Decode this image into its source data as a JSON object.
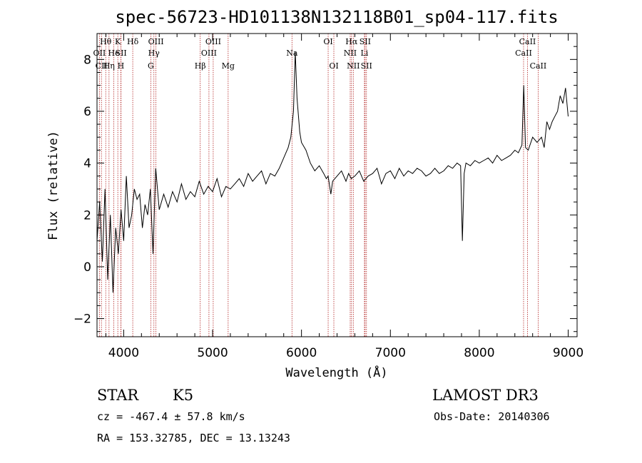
{
  "chart_data": {
    "type": "line",
    "title": "spec-56723-HD101138N132118B01_sp04-117.fits",
    "xlabel": "Wavelength (Å)",
    "ylabel": "Flux (relative)",
    "xlim": [
      3700,
      9100
    ],
    "ylim": [
      -2.7,
      9.0
    ],
    "xticks": [
      4000,
      5000,
      6000,
      7000,
      8000,
      9000
    ],
    "yticks": [
      -2,
      0,
      2,
      4,
      6,
      8
    ],
    "series": [
      {
        "name": "flux",
        "x": [
          3700,
          3730,
          3760,
          3790,
          3820,
          3850,
          3880,
          3910,
          3940,
          3970,
          4000,
          4030,
          4060,
          4090,
          4120,
          4150,
          4180,
          4210,
          4240,
          4270,
          4300,
          4330,
          4360,
          4400,
          4450,
          4500,
          4550,
          4600,
          4650,
          4700,
          4750,
          4800,
          4850,
          4900,
          4950,
          5000,
          5050,
          5100,
          5150,
          5200,
          5250,
          5300,
          5350,
          5400,
          5450,
          5500,
          5550,
          5600,
          5650,
          5700,
          5750,
          5800,
          5850,
          5880,
          5910,
          5930,
          5950,
          5980,
          6000,
          6050,
          6100,
          6150,
          6200,
          6250,
          6280,
          6300,
          6330,
          6350,
          6400,
          6450,
          6500,
          6530,
          6560,
          6600,
          6650,
          6700,
          6750,
          6800,
          6850,
          6900,
          6950,
          7000,
          7050,
          7100,
          7150,
          7200,
          7250,
          7300,
          7350,
          7400,
          7450,
          7500,
          7550,
          7600,
          7650,
          7700,
          7750,
          7790,
          7810,
          7830,
          7850,
          7900,
          7950,
          8000,
          8050,
          8100,
          8150,
          8200,
          8250,
          8300,
          8350,
          8400,
          8440,
          8480,
          8500,
          8520,
          8550,
          8600,
          8650,
          8700,
          8730,
          8760,
          8790,
          8820,
          8850,
          8880,
          8910,
          8940,
          8970,
          9000
        ],
        "values": [
          1.0,
          2.5,
          0.2,
          3.0,
          -0.5,
          2.0,
          -1.0,
          1.5,
          0.5,
          2.2,
          1.0,
          3.5,
          1.5,
          2.0,
          3.0,
          2.6,
          2.8,
          1.5,
          2.4,
          2.0,
          3.0,
          0.5,
          3.8,
          2.2,
          2.8,
          2.3,
          2.9,
          2.5,
          3.2,
          2.6,
          2.9,
          2.7,
          3.3,
          2.8,
          3.1,
          2.9,
          3.4,
          2.7,
          3.1,
          3.0,
          3.2,
          3.4,
          3.1,
          3.6,
          3.3,
          3.5,
          3.7,
          3.2,
          3.6,
          3.5,
          3.8,
          4.2,
          4.6,
          5.0,
          6.0,
          8.3,
          6.5,
          5.2,
          4.8,
          4.5,
          4.0,
          3.7,
          3.9,
          3.6,
          3.4,
          3.5,
          2.8,
          3.3,
          3.5,
          3.7,
          3.3,
          3.6,
          3.4,
          3.5,
          3.7,
          3.3,
          3.5,
          3.6,
          3.8,
          3.2,
          3.6,
          3.7,
          3.4,
          3.8,
          3.5,
          3.7,
          3.6,
          3.8,
          3.7,
          3.5,
          3.6,
          3.8,
          3.6,
          3.7,
          3.9,
          3.8,
          4.0,
          3.9,
          1.0,
          3.6,
          4.0,
          3.9,
          4.1,
          4.0,
          4.1,
          4.2,
          4.0,
          4.3,
          4.1,
          4.2,
          4.3,
          4.5,
          4.4,
          4.7,
          7.0,
          4.6,
          4.5,
          5.0,
          4.8,
          5.0,
          4.6,
          5.6,
          5.3,
          5.6,
          5.8,
          6.0,
          6.6,
          6.3,
          6.9,
          5.8
        ]
      }
    ],
    "line_markers": [
      {
        "label": "Hθ",
        "x": 3798,
        "row": 1
      },
      {
        "label": "Hη",
        "x": 3835,
        "row": 3
      },
      {
        "label": "OII",
        "x": 3727,
        "row": 2
      },
      {
        "label": "CII",
        "x": 3750,
        "row": 3
      },
      {
        "label": "He",
        "x": 3889,
        "row": 2
      },
      {
        "label": "K",
        "x": 3934,
        "row": 1
      },
      {
        "label": "SII",
        "x": 3970,
        "row": 2
      },
      {
        "label": "H",
        "x": 3968,
        "row": 3
      },
      {
        "label": "Hδ",
        "x": 4102,
        "row": 1
      },
      {
        "label": "OIII",
        "x": 4363,
        "row": 1
      },
      {
        "label": "Hγ",
        "x": 4340,
        "row": 2
      },
      {
        "label": "G",
        "x": 4305,
        "row": 3
      },
      {
        "label": "Hβ",
        "x": 4861,
        "row": 3
      },
      {
        "label": "OIII",
        "x": 5007,
        "row": 1
      },
      {
        "label": "OIII",
        "x": 4959,
        "row": 2
      },
      {
        "label": "Mg",
        "x": 5175,
        "row": 3
      },
      {
        "label": "Na",
        "x": 5893,
        "row": 2
      },
      {
        "label": "OI",
        "x": 6300,
        "row": 1
      },
      {
        "label": "OI",
        "x": 6364,
        "row": 3
      },
      {
        "label": "Hα",
        "x": 6563,
        "row": 1
      },
      {
        "label": "SII",
        "x": 6716,
        "row": 1
      },
      {
        "label": "NII",
        "x": 6548,
        "row": 2
      },
      {
        "label": "Li",
        "x": 6708,
        "row": 2
      },
      {
        "label": "NII",
        "x": 6583,
        "row": 3
      },
      {
        "label": "SII",
        "x": 6731,
        "row": 3
      },
      {
        "label": "CaII",
        "x": 8542,
        "row": 1
      },
      {
        "label": "CaII",
        "x": 8498,
        "row": 2
      },
      {
        "label": "CaII",
        "x": 8662,
        "row": 3
      }
    ]
  },
  "info": {
    "object_class": "STAR",
    "subclass": "K5",
    "survey": "LAMOST DR3",
    "cz": "cz = -467.4 ± 57.8 km/s",
    "obs_date": "Obs-Date: 20140306",
    "coords": "RA = 153.32785, DEC =  13.13243"
  },
  "colors": {
    "spectrum": "#000000",
    "marker_lines": "#b22222",
    "axes": "#000000"
  }
}
